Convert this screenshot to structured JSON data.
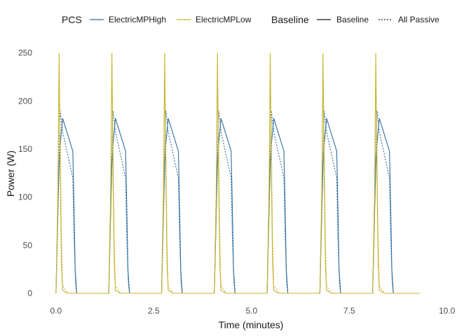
{
  "chart_data": {
    "type": "line",
    "xlabel": "Time (minutes)",
    "ylabel": "Power (W)",
    "xlim": [
      -0.5,
      10.4
    ],
    "ylim": [
      -8,
      260
    ],
    "xticks": [
      0.0,
      2.5,
      5.0,
      7.5,
      10.0
    ],
    "xtick_labels": [
      "0.0",
      "2.5",
      "5.0",
      "7.5",
      "10.0"
    ],
    "yticks": [
      0,
      50,
      100,
      150,
      200,
      250
    ],
    "ytick_labels": [
      "0",
      "50",
      "100",
      "150",
      "200",
      "250"
    ],
    "grid": false,
    "legend_position": "top",
    "legend": {
      "color_title": "PCS",
      "linetype_title": "Baseline",
      "color_entries": [
        {
          "label": "ElectricMPHigh",
          "color": "#2f6ea0"
        },
        {
          "label": "ElectricMPLow",
          "color": "#c8b430"
        }
      ],
      "linetype_entries": [
        {
          "label": "Baseline",
          "dash": "solid"
        },
        {
          "label": "All Passive",
          "dash": "dotted"
        }
      ]
    },
    "series": [
      {
        "pcs": "ElectricMPHigh",
        "baseline": "Baseline",
        "color": "#2f6ea0",
        "dash": "solid",
        "points": [
          [
            0.05,
            85
          ],
          [
            0.08,
            135
          ],
          [
            0.11,
            155
          ],
          [
            0.17,
            182
          ],
          [
            0.43,
            148
          ],
          [
            0.46,
            90
          ],
          [
            0.49,
            25
          ],
          [
            0.53,
            0
          ],
          [
            9.3,
            0
          ]
        ]
      },
      {
        "pcs": "ElectricMPHigh",
        "baseline": "All Passive",
        "color": "#2f6ea0",
        "dash": "dotted",
        "points": [
          [
            0.05,
            95
          ],
          [
            0.08,
            140
          ],
          [
            0.11,
            190
          ],
          [
            0.17,
            168
          ],
          [
            0.43,
            120
          ],
          [
            0.46,
            60
          ],
          [
            0.5,
            10
          ],
          [
            0.53,
            0
          ],
          [
            9.3,
            0
          ]
        ]
      },
      {
        "pcs": "ElectricMPLow",
        "baseline": "Baseline",
        "color": "#c8b430",
        "dash": "solid",
        "points": [
          [
            0.05,
            100
          ],
          [
            0.08,
            250
          ],
          [
            0.11,
            120
          ],
          [
            0.14,
            30
          ],
          [
            0.17,
            3
          ],
          [
            0.3,
            0
          ],
          [
            9.3,
            0
          ]
        ]
      },
      {
        "pcs": "ElectricMPLow",
        "baseline": "All Passive",
        "color": "#c8b430",
        "dash": "dotted",
        "points": [
          [
            0.05,
            120
          ],
          [
            0.08,
            225
          ],
          [
            0.11,
            160
          ],
          [
            0.14,
            60
          ],
          [
            0.17,
            8
          ],
          [
            0.3,
            0
          ],
          [
            9.3,
            0
          ]
        ]
      }
    ],
    "cycle_starts": [
      0.0,
      1.35,
      2.7,
      4.05,
      5.4,
      6.75,
      8.1
    ],
    "last_cycle_end": 9.3
  }
}
